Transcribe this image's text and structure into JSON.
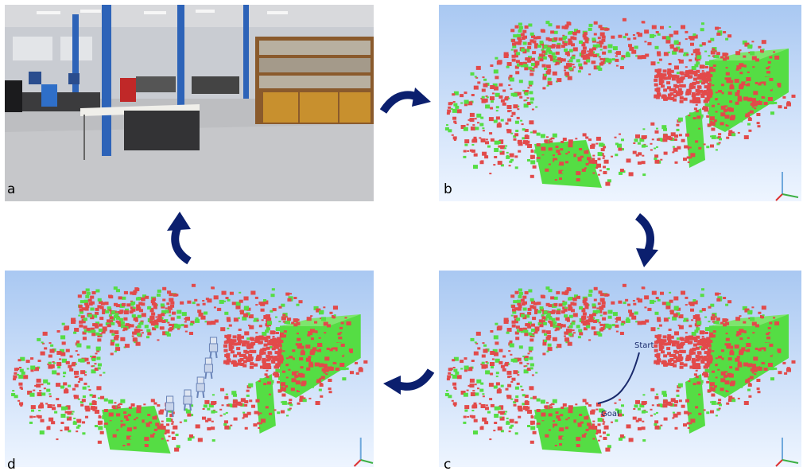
{
  "figure": {
    "panels": [
      {
        "id": "a",
        "label": "a",
        "content": "photo of lab office"
      },
      {
        "id": "b",
        "label": "b",
        "content": "3D voxel octomap"
      },
      {
        "id": "c",
        "label": "c",
        "content": "octomap with planned path"
      },
      {
        "id": "d",
        "label": "d",
        "content": "octomap with humanoid robot poses"
      }
    ],
    "path_annotations": {
      "start": "Start",
      "goal": "Goal"
    },
    "colors": {
      "occupied_voxel": "#e24a4a",
      "free_voxel": "#55dd44",
      "sky_top": "#a9c8f2",
      "sky_bottom": "#eef5ff",
      "arrow": "#0b1f6e",
      "path": "#1a2a6c"
    },
    "cycle_order": [
      "a",
      "b",
      "c",
      "d"
    ]
  }
}
